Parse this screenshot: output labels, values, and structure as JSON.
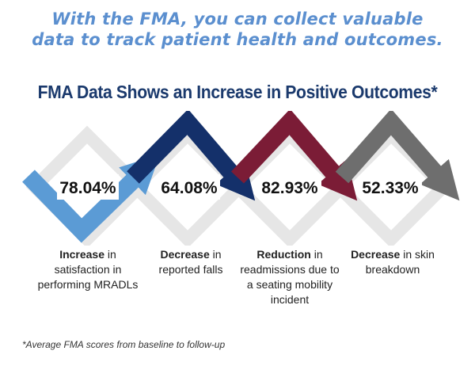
{
  "headline": {
    "line1": "With the FMA, you can collect valuable",
    "line2": "data to track patient health and outcomes."
  },
  "title": "FMA Data Shows an Increase in Positive Outcomes*",
  "colors": {
    "headline": "#5b8fcf",
    "title": "#1b3a6d",
    "arrow_1": "#5b9bd5",
    "arrow_2": "#14306a",
    "arrow_3": "#7b1c36",
    "arrow_4": "#6e6e6e",
    "diamond_outline": "#e6e6e6"
  },
  "stats": [
    {
      "value": "78.04%",
      "label_bold": "Increase",
      "label_rest": " in satisfaction in performing MRADLs",
      "arrow_icon": "light-blue-chevron-arrow-icon"
    },
    {
      "value": "64.08%",
      "label_bold": "Decrease",
      "label_rest": " in reported falls",
      "arrow_icon": "navy-chevron-arrow-icon"
    },
    {
      "value": "82.93%",
      "label_bold": "Reduction",
      "label_rest": " in readmissions due to a seating mobility incident",
      "arrow_icon": "maroon-chevron-arrow-icon"
    },
    {
      "value": "52.33%",
      "label_bold": "Decrease",
      "label_rest": " in skin breakdown",
      "arrow_icon": "gray-chevron-arrow-icon"
    }
  ],
  "footnote": "*Average FMA scores from baseline to follow-up"
}
